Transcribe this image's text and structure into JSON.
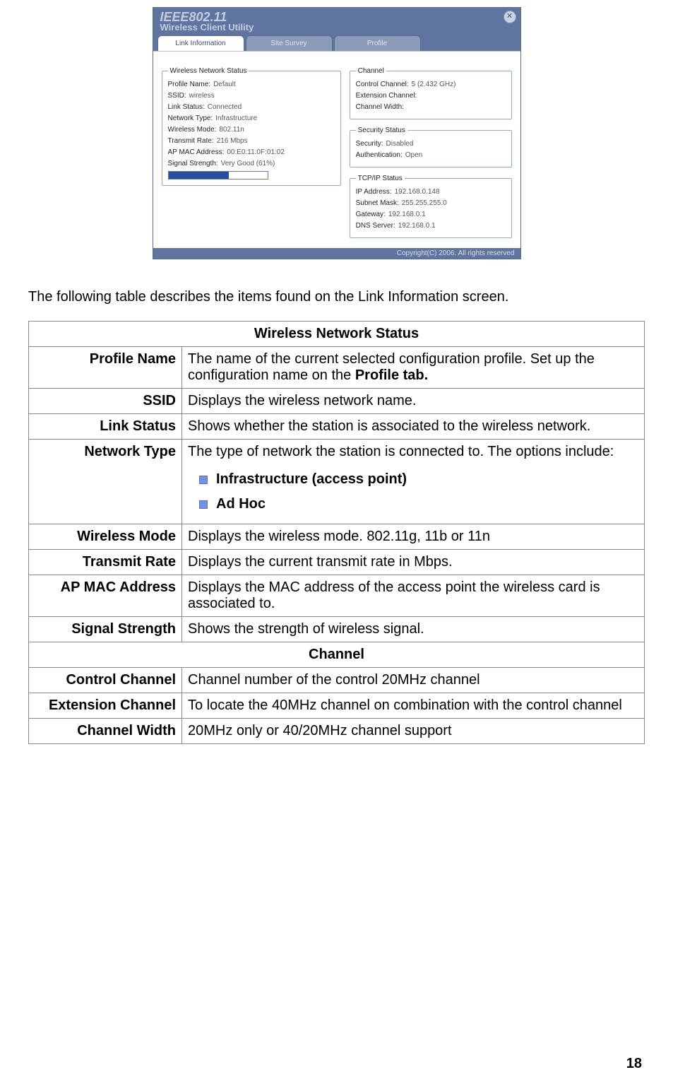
{
  "app": {
    "title_big": "IEEE802.11",
    "title_sub": "Wireless Client Utility",
    "tabs": [
      "Link Information",
      "Site Survey",
      "Profile"
    ],
    "footer": "Copyright(C) 2006. All rights reserved",
    "groups": {
      "wns": {
        "legend": "Wireless Network Status",
        "items": [
          {
            "k": "Profile Name:",
            "v": "Default"
          },
          {
            "k": "SSID:",
            "v": "wireless"
          },
          {
            "k": "Link Status:",
            "v": "Connected"
          },
          {
            "k": "Network Type:",
            "v": "Infrastructure"
          },
          {
            "k": "Wireless Mode:",
            "v": "802.11n"
          },
          {
            "k": "Transmit Rate:",
            "v": "216 Mbps"
          },
          {
            "k": "AP MAC Address:",
            "v": "00:E0:11:0F:01:02"
          },
          {
            "k": "Signal Strength:",
            "v": "Very Good (61%)"
          }
        ],
        "signal_pct": 61,
        "signal_fill_color": "#2a4ea0"
      },
      "channel": {
        "legend": "Channel",
        "items": [
          {
            "k": "Control Channel:",
            "v": "5 (2.432 GHz)"
          },
          {
            "k": "Extension Channel:",
            "v": ""
          },
          {
            "k": "Channel Width:",
            "v": ""
          }
        ]
      },
      "security": {
        "legend": "Security Status",
        "items": [
          {
            "k": "Security:",
            "v": "Disabled"
          },
          {
            "k": "Authentication:",
            "v": "Open"
          }
        ]
      },
      "tcpip": {
        "legend": "TCP/IP Status",
        "items": [
          {
            "k": "IP Address:",
            "v": "192.168.0.148"
          },
          {
            "k": "Subnet Mask:",
            "v": "255.255.255.0"
          },
          {
            "k": "Gateway:",
            "v": "192.168.0.1"
          },
          {
            "k": "DNS Server:",
            "v": "192.168.0.1"
          }
        ]
      }
    }
  },
  "intro_text": "The following table describes the items found on the Link Information screen.",
  "table": {
    "section1": "Wireless Network Status",
    "rows1": [
      {
        "label": "Profile Name",
        "desc_pre": "The name of the current selected configuration profile.   Set up the configuration name on the ",
        "desc_bold": "Profile tab."
      },
      {
        "label": "SSID",
        "desc": "Displays the wireless network name."
      },
      {
        "label": "Link Status",
        "desc": "Shows whether the station is associated to the wireless network."
      },
      {
        "label": "Network Type",
        "desc_intro": "The type of network the station is connected to.   The options include:",
        "bullets": [
          "Infrastructure (access point)",
          "Ad Hoc"
        ]
      },
      {
        "label": "Wireless Mode",
        "desc": "Displays the wireless mode. 802.11g, 11b or 11n"
      },
      {
        "label": "Transmit Rate",
        "desc": "Displays the current transmit rate in Mbps."
      },
      {
        "label": "AP MAC Address",
        "desc": "Displays the MAC address of the access point the wireless card is associated to."
      },
      {
        "label": "Signal  Strength",
        "desc": "Shows the strength of wireless signal."
      }
    ],
    "section2": "Channel",
    "rows2": [
      {
        "label": "Control  Channel",
        "desc": "Channel number of the control 20MHz channel"
      },
      {
        "label": "Extension  Channel",
        "desc": "To locate the 40MHz channel on combination with the control channel"
      },
      {
        "label": "Channel  Width",
        "desc": "20MHz only or 40/20MHz channel support"
      }
    ]
  },
  "page_number": "18",
  "colors": {
    "header_bg": "#6074a0",
    "tab_inactive_bg": "#8a9bb8",
    "bullet_color": "#7a8de0",
    "border": "#888888"
  }
}
